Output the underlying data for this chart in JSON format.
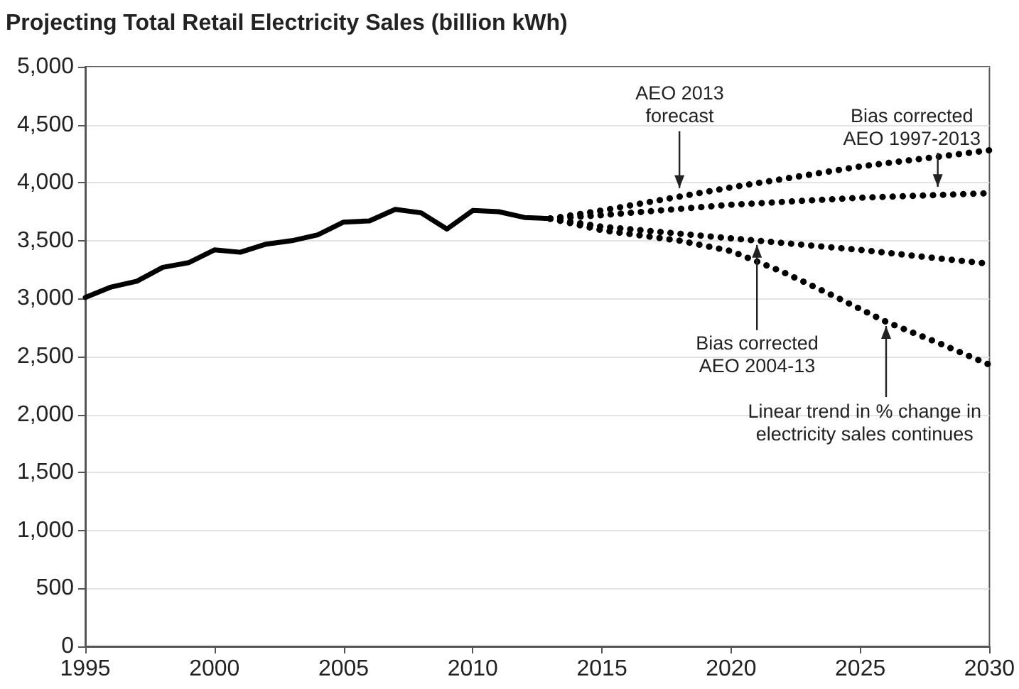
{
  "chart_data": {
    "type": "line",
    "title": "Projecting Total Retail Electricity Sales (billion kWh)",
    "series": [
      {
        "color": "#000000",
        "line_style": "solid",
        "x": [
          1995,
          1996,
          1997,
          1998,
          1999,
          2000,
          2001,
          2002,
          2003,
          2004,
          2005,
          2006,
          2007,
          2008,
          2009,
          2010,
          2011,
          2012,
          2013
        ],
        "values": [
          3010,
          3100,
          3150,
          3270,
          3310,
          3420,
          3400,
          3470,
          3500,
          3550,
          3660,
          3670,
          3770,
          3740,
          3600,
          3760,
          3750,
          3700,
          3690
        ]
      },
      {
        "color": "#000000",
        "line_style": "dotted",
        "x": [
          2013,
          2015,
          2018,
          2020,
          2025,
          2030
        ],
        "values": [
          3690,
          3760,
          3880,
          3960,
          4140,
          4280
        ]
      },
      {
        "color": "#000000",
        "line_style": "dotted",
        "x": [
          2013,
          2015,
          2020,
          2025,
          2030
        ],
        "values": [
          3690,
          3720,
          3810,
          3870,
          3910
        ]
      },
      {
        "color": "#000000",
        "line_style": "dotted",
        "x": [
          2013,
          2015,
          2020,
          2025,
          2030
        ],
        "values": [
          3690,
          3620,
          3520,
          3420,
          3300
        ]
      },
      {
        "color": "#000000",
        "line_style": "dotted",
        "x": [
          2013,
          2015,
          2018,
          2020,
          2022,
          2024,
          2026,
          2028,
          2030
        ],
        "values": [
          3690,
          3590,
          3500,
          3410,
          3230,
          3020,
          2800,
          2620,
          2430
        ]
      }
    ],
    "xlim": [
      1995,
      2030
    ],
    "xticks": [
      1995,
      2000,
      2005,
      2010,
      2015,
      2020,
      2025,
      2030
    ],
    "ylim": [
      0,
      5000
    ],
    "yticks": [
      {
        "value": 0,
        "label": "0"
      },
      {
        "value": 500,
        "label": "500"
      },
      {
        "value": 1000,
        "label": "1,000"
      },
      {
        "value": 1500,
        "label": "1,500"
      },
      {
        "value": 2000,
        "label": "2,000"
      },
      {
        "value": 2500,
        "label": "2,500"
      },
      {
        "value": 3000,
        "label": "3,000"
      },
      {
        "value": 3500,
        "label": "3,500"
      },
      {
        "value": 4000,
        "label": "4,000"
      },
      {
        "value": 4500,
        "label": "4,500"
      },
      {
        "value": 5000,
        "label": "5,000"
      }
    ],
    "grid": "y",
    "marker": "none",
    "annotations": [
      {
        "text": "AEO 2013\nforecast",
        "x": 2018,
        "y": 3880
      },
      {
        "text": "Bias corrected\nAEO 1997-2013",
        "x": 2028,
        "y": 3890
      },
      {
        "text": "Bias corrected\nAEO 2004-13",
        "x": 2021,
        "y": 3500
      },
      {
        "text": "Linear trend in % change in\nelectricity sales continues",
        "x": 2026,
        "y": 2800
      }
    ]
  }
}
